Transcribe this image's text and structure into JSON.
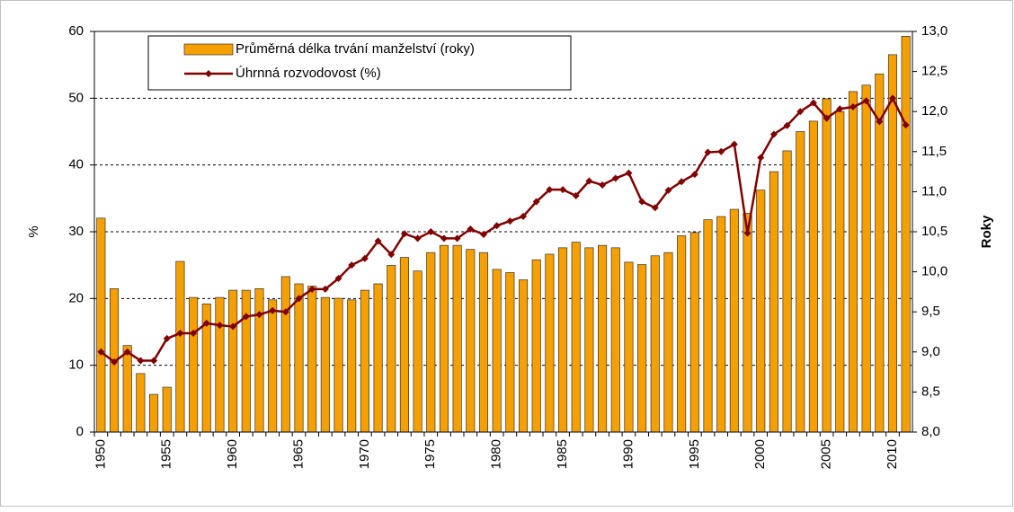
{
  "chart_data": {
    "type": "bar_line",
    "y2label": "Roky",
    "ylabel": "%",
    "categories": [
      "1950",
      null,
      null,
      null,
      null,
      "1955",
      null,
      null,
      null,
      null,
      "1960",
      null,
      null,
      null,
      null,
      "1965",
      null,
      null,
      null,
      null,
      "1970",
      null,
      null,
      null,
      null,
      "1975",
      null,
      null,
      null,
      null,
      "1980",
      null,
      null,
      null,
      null,
      "1985",
      null,
      null,
      null,
      null,
      "1990",
      null,
      null,
      null,
      null,
      "1995",
      null,
      null,
      null,
      null,
      "2000",
      null,
      null,
      null,
      null,
      "2005",
      null,
      null,
      null,
      null,
      "2010",
      null
    ],
    "series": [
      {
        "name": "Průměrná délka trvání manželství (roky)",
        "type": "bar",
        "axis": "y2",
        "color": "#f5a000",
        "values": [
          10.67,
          9.79,
          9.08,
          8.73,
          8.47,
          8.56,
          10.13,
          9.68,
          9.6,
          9.68,
          9.77,
          9.77,
          9.79,
          9.65,
          9.94,
          9.85,
          9.82,
          9.68,
          9.67,
          9.65,
          9.77,
          9.85,
          10.08,
          10.18,
          10.01,
          10.24,
          10.33,
          10.33,
          10.28,
          10.24,
          10.03,
          9.99,
          9.9,
          10.15,
          10.22,
          10.3,
          10.37,
          10.3,
          10.33,
          10.3,
          10.12,
          10.09,
          10.2,
          10.24,
          10.45,
          10.49,
          10.65,
          10.69,
          10.78,
          10.73,
          11.02,
          11.25,
          11.51,
          11.75,
          11.88,
          12.16,
          12.0,
          12.25,
          12.33,
          12.47,
          12.71,
          12.94
        ]
      },
      {
        "name": "Úhrnná rozvodovost (%)",
        "type": "line",
        "axis": "y",
        "color": "#800000",
        "values": [
          12,
          10.5,
          12,
          10.7,
          10.7,
          14,
          14.8,
          14.8,
          16.3,
          16,
          15.8,
          17.3,
          17.6,
          18.2,
          18,
          20,
          21.4,
          21.4,
          23,
          25,
          26,
          28.6,
          26.6,
          29.7,
          29,
          30,
          29,
          29,
          30.4,
          29.6,
          30.9,
          31.6,
          32.3,
          34.5,
          36.3,
          36.3,
          35.4,
          37.6,
          37,
          38,
          38.8,
          34.5,
          33.6,
          36.2,
          37.5,
          38.6,
          41.9,
          42,
          43.1,
          29.8,
          41.1,
          44.6,
          45.9,
          48,
          49.3,
          47,
          48.4,
          48.7,
          49.6,
          46.5,
          50,
          46
        ]
      }
    ],
    "ylim": [
      0,
      60
    ],
    "yticks": [
      0,
      10,
      20,
      30,
      40,
      50,
      60
    ],
    "y2lim": [
      8,
      13
    ],
    "y2ticks": [
      {
        "value": 8,
        "label": "8,0"
      },
      {
        "value": 8.5,
        "label": "8,5"
      },
      {
        "value": 9,
        "label": "9,0"
      },
      {
        "value": 9.5,
        "label": "9,5"
      },
      {
        "value": 10,
        "label": "10,0"
      },
      {
        "value": 10.5,
        "label": "10,5"
      },
      {
        "value": 11,
        "label": "11,0"
      },
      {
        "value": 11.5,
        "label": "11,5"
      },
      {
        "value": 12,
        "label": "12,0"
      },
      {
        "value": 12.5,
        "label": "12,5"
      },
      {
        "value": 13,
        "label": "13,0"
      }
    ],
    "grid": true,
    "legend": "top-left"
  }
}
